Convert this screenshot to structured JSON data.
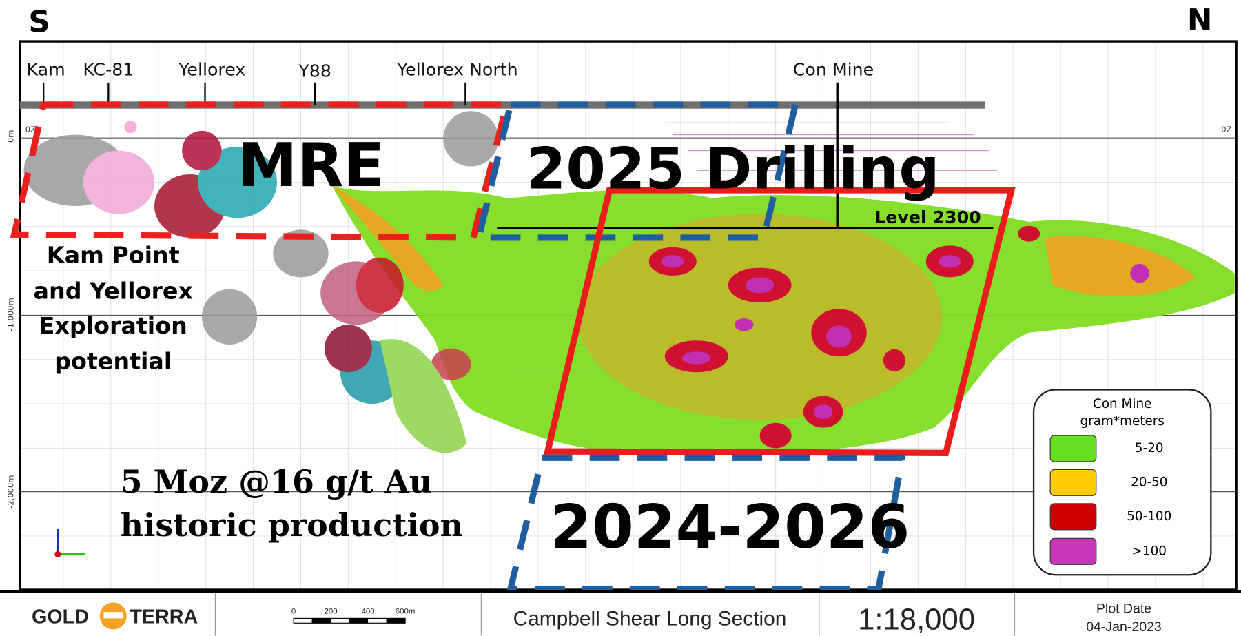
{
  "compass": {
    "left": "S",
    "right": "N"
  },
  "locations": [
    "Kam",
    "KC-81",
    "Yellorex",
    "Y88",
    "Yellorex North",
    "Con Mine"
  ],
  "depth_labels": [
    "0m",
    "-1,000m",
    "-2,000m"
  ],
  "zone_label": "0Z",
  "overlays": {
    "mre": "MRE",
    "drilling_2025": "2025 Drilling",
    "level": "Level 2300",
    "period": "2024-2026",
    "exploration": [
      "Kam Point",
      "and Yellorex",
      "Exploration",
      "potential"
    ],
    "production": [
      "5 Moz @16 g/t Au",
      "historic production"
    ]
  },
  "legend": {
    "title": [
      "Con Mine",
      "gram*meters"
    ],
    "items": [
      "5-20",
      "20-50",
      "50-100",
      ">100"
    ]
  },
  "footer": {
    "logo": [
      "GOLD",
      "TERRA"
    ],
    "scale_bar": [
      "0",
      "200",
      "400",
      "600m"
    ],
    "title": "Campbell Shear Long Section",
    "scale": "1:18,000",
    "plot_date_label": "Plot Date",
    "plot_date": "04-Jan-2023"
  }
}
